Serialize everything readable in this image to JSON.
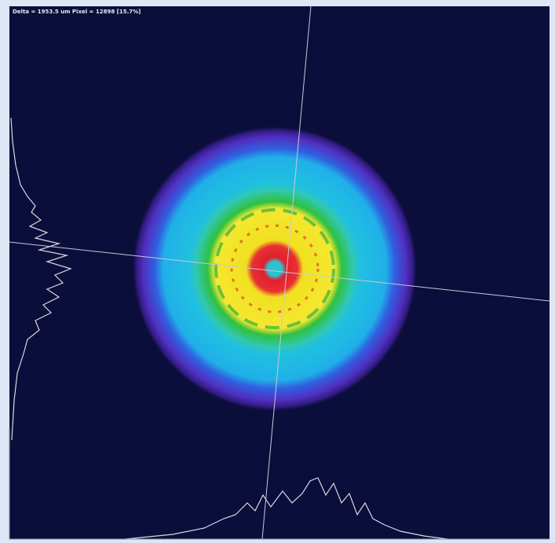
{
  "header": {
    "readout": "Delta = 1953.5 um Pixel = 12898 [15.7%]"
  }
}
